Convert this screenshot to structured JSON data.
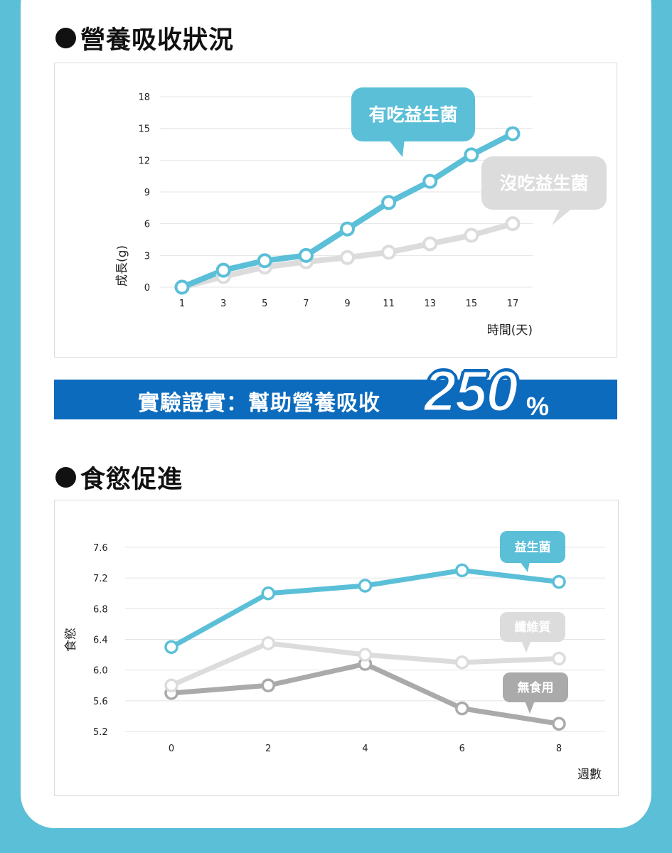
{
  "section1": {
    "title": "營養吸收狀況"
  },
  "section2": {
    "title": "食慾促進"
  },
  "banner": {
    "text": "實驗證實：幫助營養吸收",
    "number": "250",
    "unit": "%"
  },
  "colors": {
    "teal": "#5bbfd8",
    "light_gray": "#dcdcdc",
    "gray": "#aaaaaa",
    "banner_blue": "#0c6bbd"
  },
  "chart_data": [
    {
      "type": "line",
      "x": [
        1,
        3,
        5,
        7,
        9,
        11,
        13,
        15,
        17
      ],
      "ylim": [
        0,
        18
      ],
      "yticks": [
        0,
        3,
        6,
        9,
        12,
        15,
        18
      ],
      "xlabel": "時間(天)",
      "ylabel": "成長(g)",
      "grid": true,
      "series": [
        {
          "name": "有吃益生菌",
          "color": "#5bbfd8",
          "values": [
            0,
            1.6,
            2.5,
            3.0,
            5.5,
            8.0,
            10.0,
            12.5,
            14.5
          ]
        },
        {
          "name": "沒吃益生菌",
          "color": "#dcdcdc",
          "values": [
            0,
            1.0,
            1.9,
            2.4,
            2.8,
            3.3,
            4.1,
            4.9,
            6.0
          ]
        }
      ]
    },
    {
      "type": "line",
      "x": [
        0,
        2,
        4,
        6,
        8
      ],
      "ylim": [
        5.2,
        7.6
      ],
      "yticks": [
        "5.2",
        "5.6",
        "6.0",
        "6.4",
        "6.8",
        "7.2",
        "7.6"
      ],
      "xlabel": "週數",
      "ylabel": "食慾",
      "grid": true,
      "series": [
        {
          "name": "益生菌",
          "color": "#5bbfd8",
          "values": [
            6.3,
            7.0,
            7.1,
            7.3,
            7.15
          ]
        },
        {
          "name": "纖維質",
          "color": "#dcdcdc",
          "values": [
            5.8,
            6.35,
            6.2,
            6.1,
            6.15
          ]
        },
        {
          "name": "無食用",
          "color": "#aaaaaa",
          "values": [
            5.7,
            5.8,
            6.08,
            5.5,
            5.3
          ]
        }
      ]
    }
  ]
}
